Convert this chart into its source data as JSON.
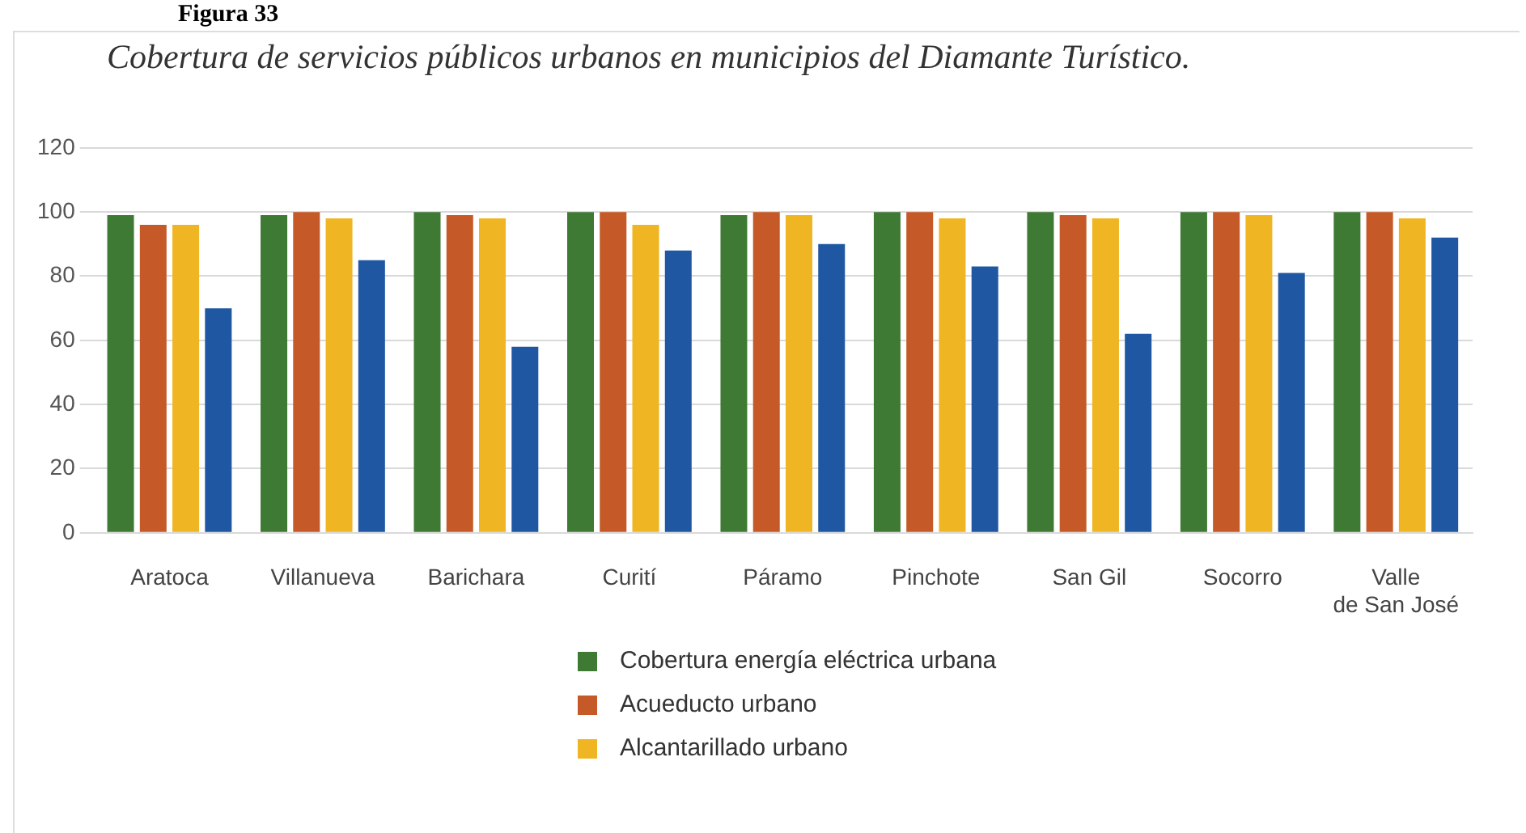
{
  "chart_data": {
    "type": "bar",
    "title": "Figura 33",
    "subtitle": "Cobertura de servicios públicos urbanos en municipios del Diamante Turístico.",
    "categories": [
      "Aratoca",
      "Villanueva",
      "Barichara",
      "Curití",
      "Páramo",
      "Pinchote",
      "San Gil",
      "Socorro",
      "Valle de San José"
    ],
    "series": [
      {
        "name": "Cobertura energía eléctrica urbana",
        "color": "#3f7a35",
        "values": [
          99,
          99,
          100,
          100,
          99,
          100,
          100,
          100,
          100
        ]
      },
      {
        "name": "Acueducto urbano",
        "color": "#c55a28",
        "values": [
          96,
          100,
          99,
          100,
          100,
          100,
          99,
          100,
          100
        ]
      },
      {
        "name": "Alcantarillado urbano",
        "color": "#f0b522",
        "values": [
          96,
          98,
          98,
          96,
          99,
          98,
          98,
          99,
          98
        ]
      },
      {
        "color": "#1f57a3",
        "values": [
          70,
          85,
          58,
          88,
          90,
          83,
          62,
          81,
          92
        ]
      }
    ],
    "ylim": [
      0,
      120
    ],
    "yticks": [
      0,
      20,
      40,
      60,
      80,
      100,
      120
    ],
    "grid": "y",
    "legend": "bottom"
  }
}
